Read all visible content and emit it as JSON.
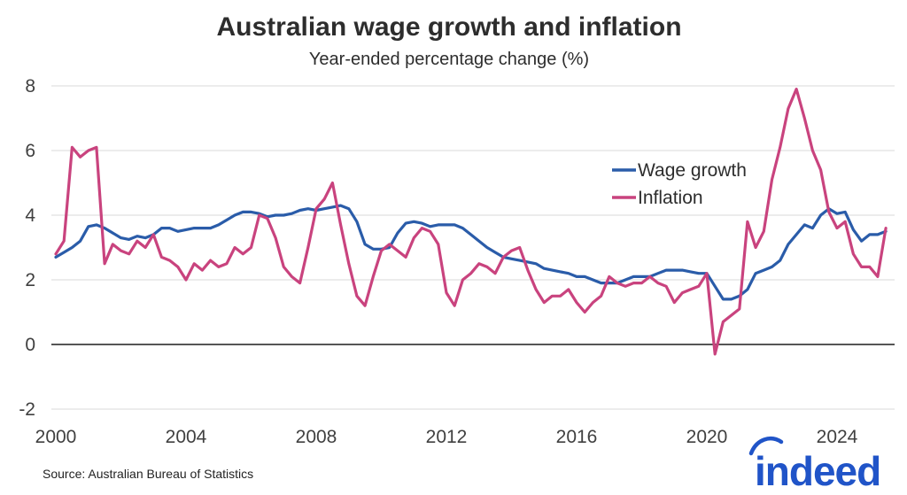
{
  "chart_data": {
    "type": "line",
    "title": "Australian wage growth and inflation",
    "subtitle": "Year-ended percentage change (%)",
    "x_range_note": "quarterly observations, 2000Q1 to 2025Q3",
    "x_axis": {
      "tick_labels": [
        "2000",
        "2004",
        "2008",
        "2012",
        "2016",
        "2020",
        "2024"
      ],
      "start_year": 2000,
      "points_per_year": 4
    },
    "y_axis": {
      "tick_labels": [
        "8",
        "6",
        "4",
        "2",
        "0",
        "-2"
      ],
      "ylim": [
        -2,
        8
      ]
    },
    "grid": true,
    "legend": {
      "position": "inside-right",
      "entries": [
        {
          "label": "Wage growth",
          "color": "#2a5ca9"
        },
        {
          "label": "Inflation",
          "color": "#c9437e"
        }
      ]
    },
    "series": [
      {
        "name": "Wage growth",
        "color": "#2a5ca9",
        "values": [
          2.7,
          2.85,
          3.0,
          3.2,
          3.65,
          3.7,
          3.6,
          3.45,
          3.3,
          3.25,
          3.35,
          3.3,
          3.4,
          3.6,
          3.6,
          3.5,
          3.55,
          3.6,
          3.6,
          3.6,
          3.7,
          3.85,
          4.0,
          4.1,
          4.1,
          4.05,
          3.95,
          4.0,
          4.0,
          4.05,
          4.15,
          4.2,
          4.15,
          4.2,
          4.25,
          4.3,
          4.2,
          3.8,
          3.1,
          2.95,
          2.95,
          3.0,
          3.45,
          3.75,
          3.8,
          3.75,
          3.65,
          3.7,
          3.7,
          3.7,
          3.6,
          3.4,
          3.2,
          3.0,
          2.85,
          2.7,
          2.65,
          2.6,
          2.55,
          2.5,
          2.35,
          2.3,
          2.25,
          2.2,
          2.1,
          2.1,
          2.0,
          1.9,
          1.9,
          1.9,
          2.0,
          2.1,
          2.1,
          2.1,
          2.2,
          2.3,
          2.3,
          2.3,
          2.25,
          2.2,
          2.2,
          1.8,
          1.4,
          1.4,
          1.5,
          1.7,
          2.2,
          2.3,
          2.4,
          2.6,
          3.1,
          3.4,
          3.7,
          3.6,
          4.0,
          4.2,
          4.05,
          4.1,
          3.55,
          3.2,
          3.4,
          3.4,
          3.5
        ]
      },
      {
        "name": "Inflation",
        "color": "#c9437e",
        "values": [
          2.8,
          3.2,
          6.1,
          5.8,
          6.0,
          6.1,
          2.5,
          3.1,
          2.9,
          2.8,
          3.2,
          3.0,
          3.4,
          2.7,
          2.6,
          2.4,
          2.0,
          2.5,
          2.3,
          2.6,
          2.4,
          2.5,
          3.0,
          2.8,
          3.0,
          4.0,
          3.9,
          3.3,
          2.4,
          2.1,
          1.9,
          3.0,
          4.2,
          4.5,
          5.0,
          3.7,
          2.5,
          1.5,
          1.2,
          2.1,
          2.9,
          3.1,
          2.9,
          2.7,
          3.3,
          3.6,
          3.5,
          3.1,
          1.6,
          1.2,
          2.0,
          2.2,
          2.5,
          2.4,
          2.2,
          2.7,
          2.9,
          3.0,
          2.3,
          1.7,
          1.3,
          1.5,
          1.5,
          1.7,
          1.3,
          1.0,
          1.3,
          1.5,
          2.1,
          1.9,
          1.8,
          1.9,
          1.9,
          2.1,
          1.9,
          1.8,
          1.3,
          1.6,
          1.7,
          1.8,
          2.2,
          -0.3,
          0.7,
          0.9,
          1.1,
          3.8,
          3.0,
          3.5,
          5.1,
          6.1,
          7.3,
          7.9,
          7.0,
          6.0,
          5.4,
          4.1,
          3.6,
          3.8,
          2.8,
          2.4,
          2.4,
          2.1,
          3.6
        ]
      }
    ]
  },
  "footer": {
    "source": "Source: Australian Bureau of Statistics",
    "logo_text": "indeed",
    "logo_color": "#2054c8"
  },
  "colors": {
    "grid": "#d9d9d9",
    "zero_line": "#3d3d3d",
    "title_text": "#2d2d2d",
    "tick_text": "#404040"
  }
}
